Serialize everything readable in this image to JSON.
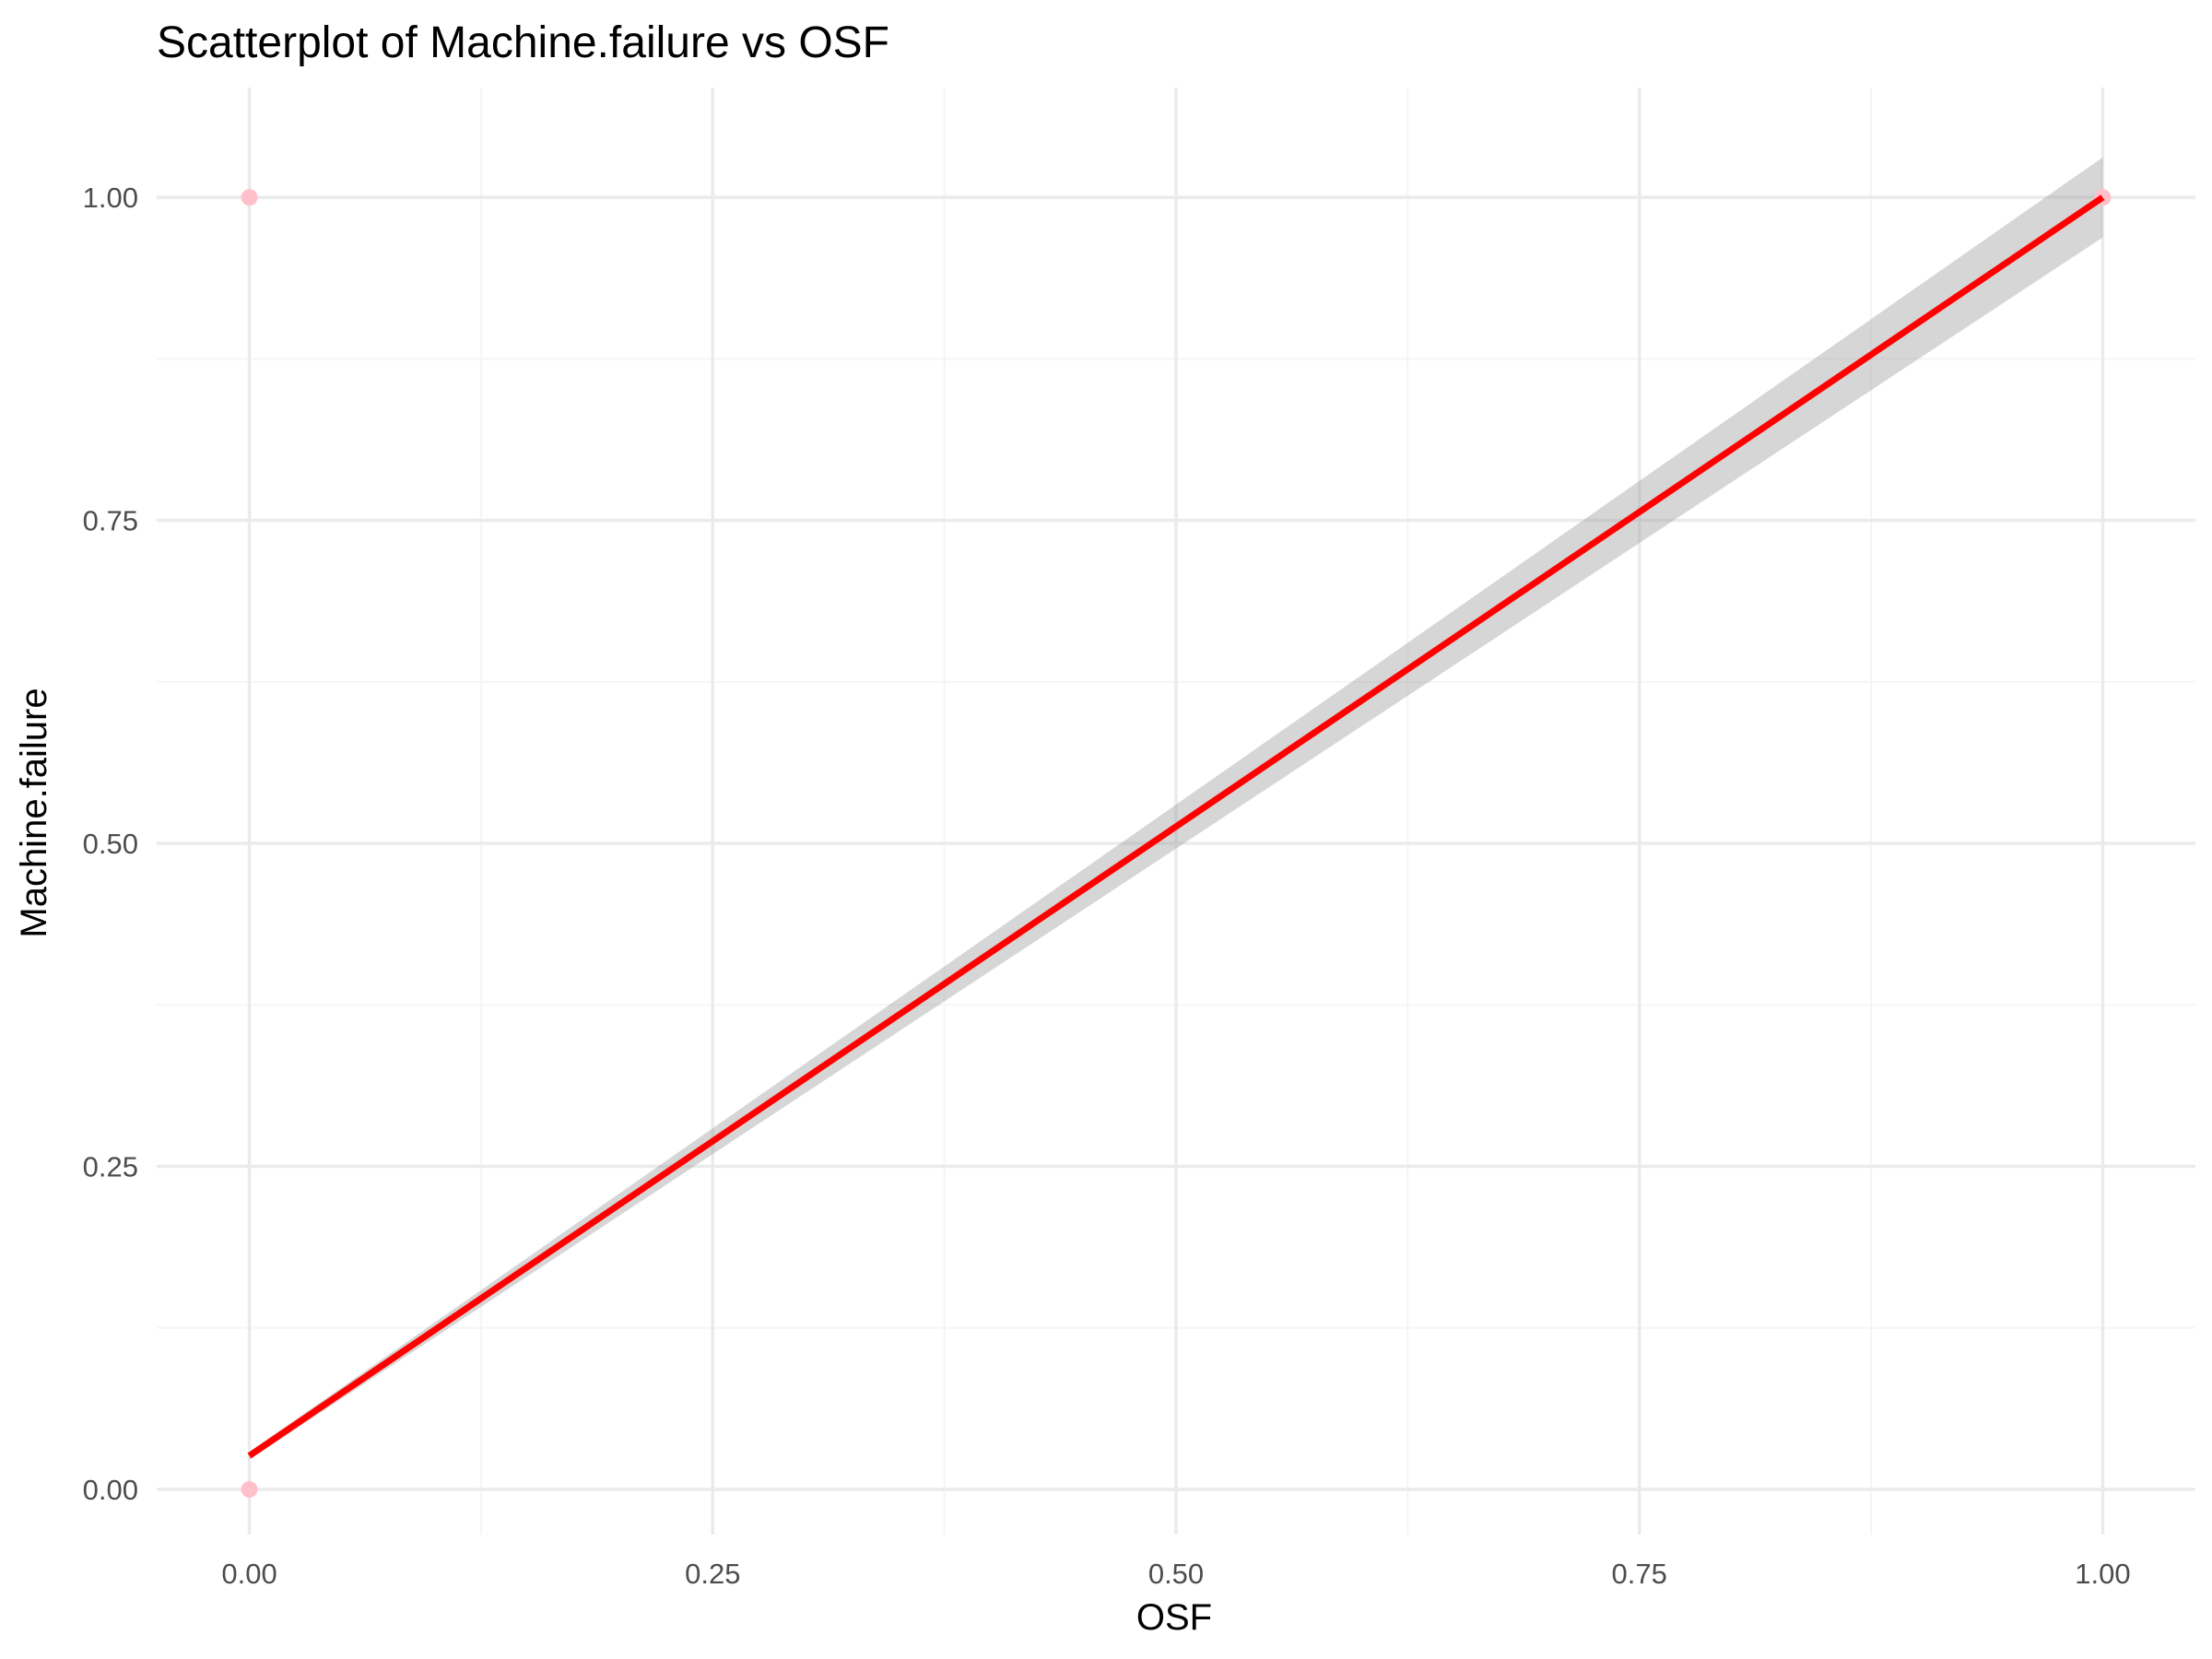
{
  "chart_data": {
    "type": "scatter",
    "title": "Scatterplot of Machine.failure vs OSF",
    "xlabel": "OSF",
    "ylabel": "Machine.failure",
    "xlim": [
      -0.05,
      1.05
    ],
    "ylim": [
      -0.035,
      1.085
    ],
    "x_ticks": [
      0.0,
      0.25,
      0.5,
      0.75,
      1.0
    ],
    "x_tick_labels": [
      "0.00",
      "0.25",
      "0.50",
      "0.75",
      "1.00"
    ],
    "y_ticks": [
      0.0,
      0.25,
      0.5,
      0.75,
      1.0
    ],
    "y_tick_labels": [
      "0.00",
      "0.25",
      "0.50",
      "0.75",
      "1.00"
    ],
    "grid": true,
    "legend": "none",
    "points": [
      {
        "x": 0.0,
        "y": 1.0
      },
      {
        "x": 0.0,
        "y": 0.0
      },
      {
        "x": 1.0,
        "y": 1.0
      }
    ],
    "fit_line": {
      "method": "linear",
      "x": [
        0.0,
        1.0
      ],
      "y": [
        0.026,
        1.0
      ],
      "ci_lower": [
        0.023,
        0.969
      ],
      "ci_upper": [
        0.029,
        1.031
      ]
    },
    "colors": {
      "points": "#ffc0cb",
      "fit_line": "#ff0000",
      "confidence_band": "#999999",
      "grid_major": "#ebebeb",
      "grid_minor": "#f5f5f5"
    }
  }
}
